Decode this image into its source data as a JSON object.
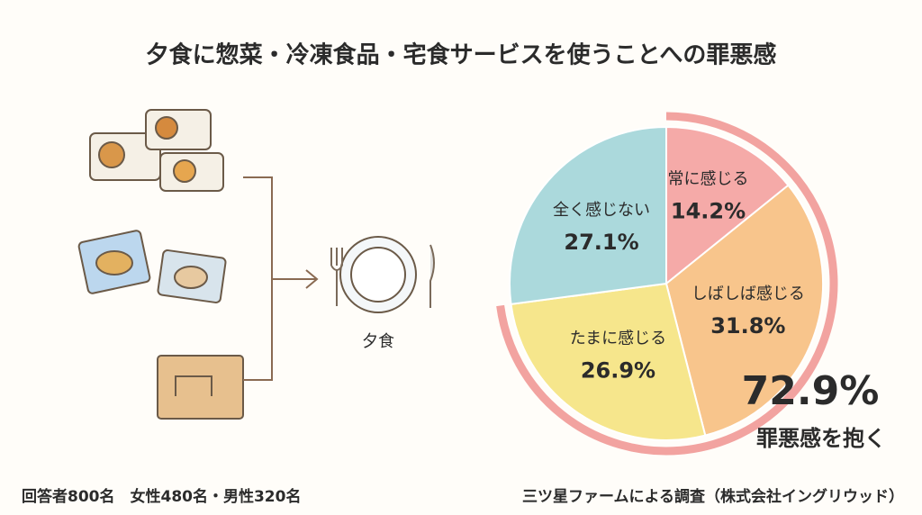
{
  "title": "夕食に惣菜・冷凍食品・宅食サービスを使うことへの罪悪感",
  "illustration_label": "夕食",
  "chart_data": {
    "type": "pie",
    "categories": [
      "常に感じる",
      "しばしば感じる",
      "たまに感じる",
      "全く感じない"
    ],
    "values": [
      14.2,
      31.8,
      26.9,
      27.1
    ],
    "value_labels": [
      "14.2%",
      "31.8%",
      "26.9%",
      "27.1%"
    ],
    "colors": [
      "#f5aaa8",
      "#f8c58c",
      "#f6e68c",
      "#abd9dc"
    ],
    "highlight": {
      "value": 72.9,
      "label": "72.9%",
      "text": "罪悪感を抱く",
      "color": "#f2a3a0"
    }
  },
  "footer": {
    "respondents": "回答者800名　女性480名・男性320名",
    "source": "三ツ星ファームによる調査（株式会社イングリウッド）"
  }
}
